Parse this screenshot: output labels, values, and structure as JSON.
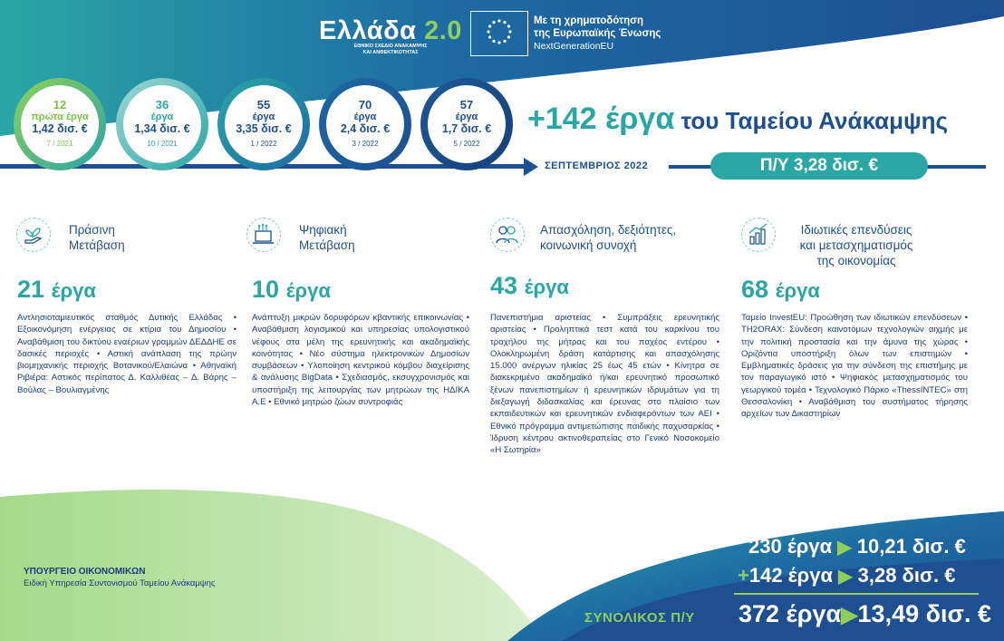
{
  "header": {
    "logo_main": "Ελλάδα",
    "logo_version": "2.0",
    "logo_sub_line1": "ΕΘΝΙΚΟ ΣΧΕΔΙΟ ΑΝΑΚΑΜΨΗΣ",
    "logo_sub_line2": "ΚΑΙ ΑΝΘΕΚΤΙΚΟΤΗΤΑΣ",
    "eu_line1": "Με τη χρηματοδότηση",
    "eu_line2": "της Ευρωπαϊκής Ένωσης",
    "eu_line3": "NextGenerationEU"
  },
  "timeline": [
    {
      "count": "12",
      "label": "πρώτα έργα",
      "amount": "1,42 δισ. €",
      "date": "7 / 2021"
    },
    {
      "count": "36",
      "label": "έργα",
      "amount": "1,34 δισ. €",
      "date": "10 / 2021"
    },
    {
      "count": "55",
      "label": "έργα",
      "amount": "3,35 δισ. €",
      "date": "1 / 2022"
    },
    {
      "count": "70",
      "label": "έργα",
      "amount": "2,4 δισ. €",
      "date": "3 / 2022"
    },
    {
      "count": "57",
      "label": "έργα",
      "amount": "1,7 δισ. €",
      "date": "5 / 2022"
    }
  ],
  "headline": {
    "big": "+142 έργα",
    "rest": " του Ταμείου Ανάκαμψης"
  },
  "date_label": "ΣΕΠΤΕΜΒΡΙΟΣ 2022",
  "budget_label": "Π/Υ 3,28 δισ. €",
  "categories": [
    {
      "title_line1": "Πράσινη",
      "title_line2": "Μετάβαση",
      "title_line3": "",
      "count_num": "21",
      "count_unit": "έργα",
      "icon": "plant-hand-icon",
      "description": "Αντλησιοταμιευτικός σταθμός Δυτικής Ελλάδας • Εξοικονόμηση ενέργειας σε κτίρια του Δημοσίου • Αναβάθμιση του δικτύου εναέριων γραμμών ΔΕΔΔΗΕ σε δασικές περιοχές • Αστική ανάπλαση της πρώην βιομηχανικής περιοχής Βοτανικού/Ελαιώνα • Αθηναϊκή Ριβιέρα: Αστικός περίπατος Δ. Καλλιθέας – Δ. Βάρης – Βούλας – Βουλιαγμένης"
    },
    {
      "title_line1": "Ψηφιακή",
      "title_line2": "Μετάβαση",
      "title_line3": "",
      "count_num": "10",
      "count_unit": "έργα",
      "icon": "laptop-circuit-icon",
      "description": "Ανάπτυξη μικρών δορυφόρων κβαντικής επικοινωνίας • Αναβάθμιση λογισμικού και υπηρεσίας υπολογιστικού νέφους στα μέλη της ερευνητικής και ακαδημαϊκής κοινότητας • Νέο σύστημα ηλεκτρονικών Δημοσίων συμβάσεων • Υλοποίηση κεντρικού κόμβου διαχείρισης & ανάλυσης BigData • Σχεδιασμός, εκσυγχρονισμός και υποστήριξη της λειτουργίας των μητρώων της ΗΔΙΚΑ Α.Ε • Εθνικό μητρώο ζώων συντροφιάς"
    },
    {
      "title_line1": "Απασχόληση, δεξιότητες,",
      "title_line2": "κοινωνική συνοχή",
      "title_line3": "",
      "count_num": "43",
      "count_unit": "έργα",
      "icon": "people-icon",
      "description": "Πανεπιστήμια αριστείας • Συμπράξεις ερευνητικής αριστείας • Προληπτικά τεστ κατά του καρκίνου του τραχήλου της μήτρας και του παχέος εντέρου • Ολοκληρωμένη δράση κατάρτισης και απασχόλησης 15.000 ανέργων ηλικίας 25 έως 45 ετών • Κίνητρα σε διακεκριμένο ακαδημαϊκό ή/και ερευνητικό προσωπικό ξένων πανεπιστημίων ή ερευνητικών ιδρυμάτων για τη διεξαγωγή διδασκαλίας και έρευνας στο πλαίσιο των εκπαιδευτικών και ερευνητικών ενδιαφερόντων των ΑΕΙ • Εθνικό πρόγραμμα αντιμετώπισης παιδικής παχυσαρκίας • Ίδρυση κέντρου ακτινοθεραπείας στο Γενικό Νοσοκομείο «Η Σωτηρία»"
    },
    {
      "title_line1": "Ιδιωτικές επενδύσεις",
      "title_line2": "και μετασχηματισμός",
      "title_line3": "της οικονομίας",
      "count_num": "68",
      "count_unit": "έργα",
      "icon": "growth-chart-icon",
      "description": "Ταμείο InvestEU: Προώθηση των ιδιωτικών επενδύσεων • TH2ORAX: Σύνδεση καινοτόμων τεχνολογιών αιχμής με την πολιτική προστασία και την άμυνα της χώρας • Οριζόντια υποστήριξη όλων των επιστημών • Εμβληματικές δράσεις για την σύνδεση της επιστήμης με τον παραγωγικό ιστό • Ψηφιακός μετασχηματισμός του γεωργικού τομέα • Τεχνολογικό Πάρκο «ThessINTEC» στη Θεσσαλονίκη • Αναβάθμιση του συστήματος τήρησης αρχείων των Δικαστηρίων"
    }
  ],
  "footer": {
    "ministry": "ΥΠΟΥΡΓΕΙΟ ΟΙΚΟΝΟΜΙΚΩΝ",
    "ministry_sub": "Ειδική Υπηρεσία Συντονισμού Ταμείου Ανάκαμψης"
  },
  "totals": {
    "row1_projects": "230 έργα",
    "row1_amount": "10,21 δισ. €",
    "row2_plus": "+",
    "row2_projects": "142 έργα",
    "row2_amount": "3,28 δισ. €",
    "total_label": "ΣΥΝΟΛΙΚΟΣ Π/Υ",
    "total_projects": "372 έργα",
    "total_amount": "13,49 δισ. €"
  },
  "colors": {
    "navy": "#1d4f91",
    "teal": "#2aa6a5",
    "green": "#8fce5a"
  }
}
